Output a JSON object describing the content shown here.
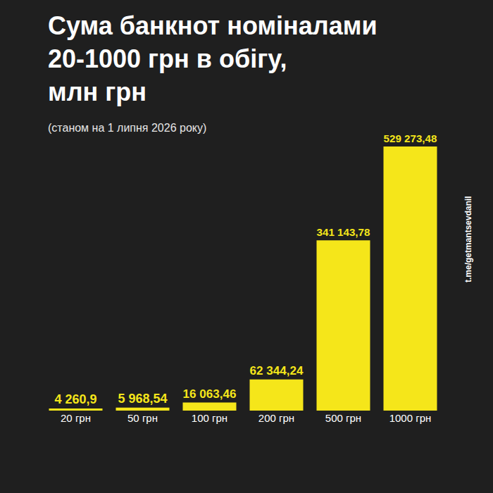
{
  "chart_data": {
    "type": "bar",
    "title": "Сума банкнот номіналами\n20-1000 грн в обігу,\nмлн грн",
    "subtitle": "(станом на 1 липня 2026 року)",
    "categories": [
      "20 грн",
      "50 грн",
      "100 грн",
      "200 грн",
      "500 грн",
      "1000 грн"
    ],
    "values": [
      4260.9,
      5968.54,
      16063.46,
      62344.24,
      341143.78,
      529273.48
    ],
    "value_labels": [
      "4 260,9",
      "5 968,54",
      "16 063,46",
      "62 344,24",
      "341 143,78",
      "529 273,48"
    ],
    "data_labels": true,
    "color": "#f5e61a",
    "ylim": [
      0,
      529273.48
    ],
    "grid": false,
    "tick_labels": "x",
    "annotations": [
      "t.me/getmantsevdanil"
    ]
  }
}
